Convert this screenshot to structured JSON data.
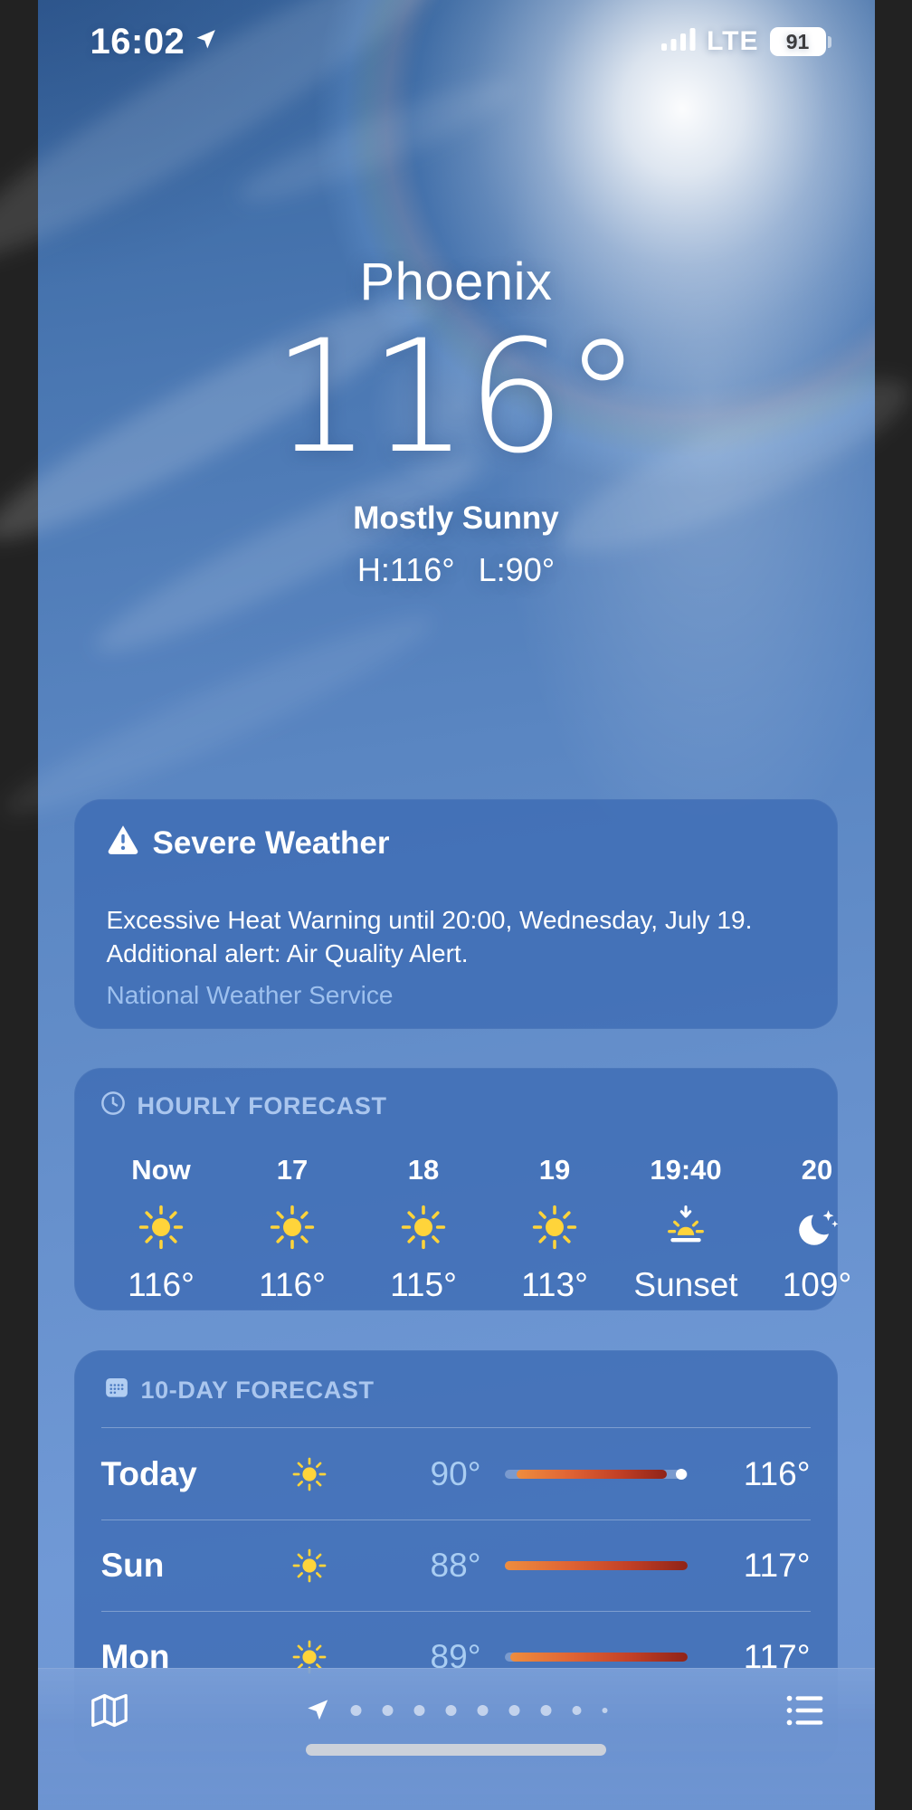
{
  "status": {
    "time": "16:02",
    "network": "LTE",
    "battery_percent": "91"
  },
  "current": {
    "city": "Phoenix",
    "temperature": "116°",
    "condition": "Mostly Sunny",
    "high_label": "H:116°",
    "low_label": "L:90°"
  },
  "alert": {
    "title": "Severe Weather",
    "description": "Excessive Heat Warning until 20:00, Wednesday, July 19. Additional alert: Air Quality Alert.",
    "source": "National Weather Service"
  },
  "hourly": {
    "header": "HOURLY FORECAST",
    "items": [
      {
        "time": "Now",
        "icon": "sun",
        "value": "116°"
      },
      {
        "time": "17",
        "icon": "sun",
        "value": "116°"
      },
      {
        "time": "18",
        "icon": "sun",
        "value": "115°"
      },
      {
        "time": "19",
        "icon": "sun",
        "value": "113°"
      },
      {
        "time": "19:40",
        "icon": "sunset",
        "value": "Sunset"
      },
      {
        "time": "20",
        "icon": "moon",
        "value": "109°"
      }
    ]
  },
  "daily": {
    "header": "10-DAY FORECAST",
    "temp_scale": {
      "min": 88,
      "max": 117
    },
    "rows": [
      {
        "day": "Today",
        "icon": "sun",
        "low": 90,
        "high": 116,
        "low_label": "90°",
        "high_label": "116°",
        "current": 116
      },
      {
        "day": "Sun",
        "icon": "sun",
        "low": 88,
        "high": 117,
        "low_label": "88°",
        "high_label": "117°",
        "current": null
      },
      {
        "day": "Mon",
        "icon": "sun",
        "low": 89,
        "high": 117,
        "low_label": "89°",
        "high_label": "117°",
        "current": null
      }
    ]
  },
  "toolbar": {
    "pager": {
      "active_icon": "location-arrow",
      "dot_sizes": [
        12,
        12,
        12,
        12,
        12,
        12,
        12,
        10,
        6
      ]
    }
  },
  "colors": {
    "card_blue": "#4d7cc2",
    "low_temp_text": "#a9cdf2",
    "header_text": "#9dc0ee",
    "bar_gradient_start": "#ee8d3e",
    "bar_gradient_end": "#8f2318",
    "sun_yellow": "#ffd43a"
  }
}
